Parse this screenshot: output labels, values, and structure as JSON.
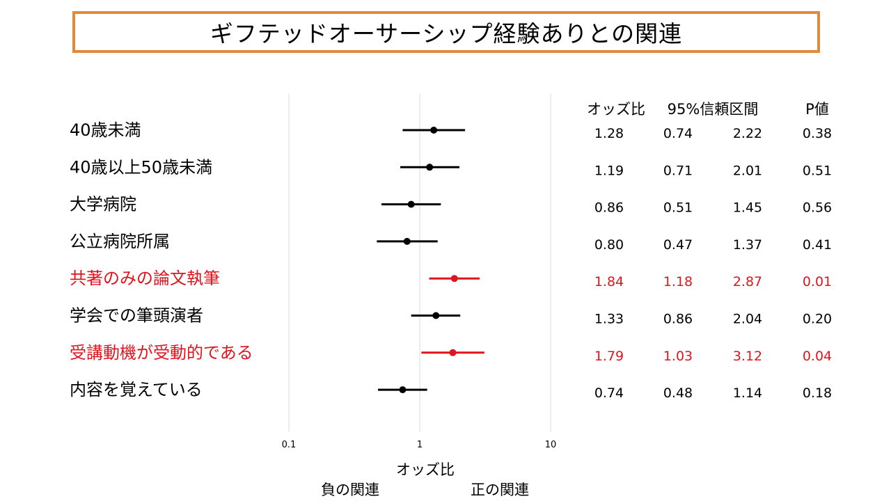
{
  "title": "ギフテッドオーサーシップ経験ありとの関連",
  "colors": {
    "title_border": "#e08a3c",
    "normal": "#000000",
    "significant": "#e0141e",
    "grid": "#d9d9d9"
  },
  "chart_data": {
    "type": "forest",
    "xscale": "log",
    "xlim": [
      0.1,
      10
    ],
    "xticks": [
      0.1,
      1,
      10
    ],
    "xtick_labels": [
      "0.1",
      "1",
      "10"
    ],
    "xlabel": "オッズ比",
    "direction_labels": {
      "negative": "負の関連",
      "positive": "正の関連"
    },
    "column_headers": {
      "or": "オッズ比",
      "ci": "95%信頼区間",
      "p": "P値"
    },
    "rows": [
      {
        "label": "40歳未満",
        "or": 1.28,
        "lo": 0.74,
        "hi": 2.22,
        "or_text": "1.28",
        "lo_text": "0.74",
        "hi_text": "2.22",
        "p_text": "0.38",
        "significant": false
      },
      {
        "label": "40歳以上50歳未満",
        "or": 1.19,
        "lo": 0.71,
        "hi": 2.01,
        "or_text": "1.19",
        "lo_text": "0.71",
        "hi_text": "2.01",
        "p_text": "0.51",
        "significant": false
      },
      {
        "label": "大学病院",
        "or": 0.86,
        "lo": 0.51,
        "hi": 1.45,
        "or_text": "0.86",
        "lo_text": "0.51",
        "hi_text": "1.45",
        "p_text": "0.56",
        "significant": false
      },
      {
        "label": "公立病院所属",
        "or": 0.8,
        "lo": 0.47,
        "hi": 1.37,
        "or_text": "0.80",
        "lo_text": "0.47",
        "hi_text": "1.37",
        "p_text": "0.41",
        "significant": false
      },
      {
        "label": "共著のみの論文執筆",
        "or": 1.84,
        "lo": 1.18,
        "hi": 2.87,
        "or_text": "1.84",
        "lo_text": "1.18",
        "hi_text": "2.87",
        "p_text": "0.01",
        "significant": true
      },
      {
        "label": "学会での筆頭演者",
        "or": 1.33,
        "lo": 0.86,
        "hi": 2.04,
        "or_text": "1.33",
        "lo_text": "0.86",
        "hi_text": "2.04",
        "p_text": "0.20",
        "significant": false
      },
      {
        "label": "受講動機が受動的である",
        "or": 1.79,
        "lo": 1.03,
        "hi": 3.12,
        "or_text": "1.79",
        "lo_text": "1.03",
        "hi_text": "3.12",
        "p_text": "0.04",
        "significant": true
      },
      {
        "label": "内容を覚えている",
        "or": 0.74,
        "lo": 0.48,
        "hi": 1.14,
        "or_text": "0.74",
        "lo_text": "0.48",
        "hi_text": "1.14",
        "p_text": "0.18",
        "significant": false
      }
    ]
  }
}
